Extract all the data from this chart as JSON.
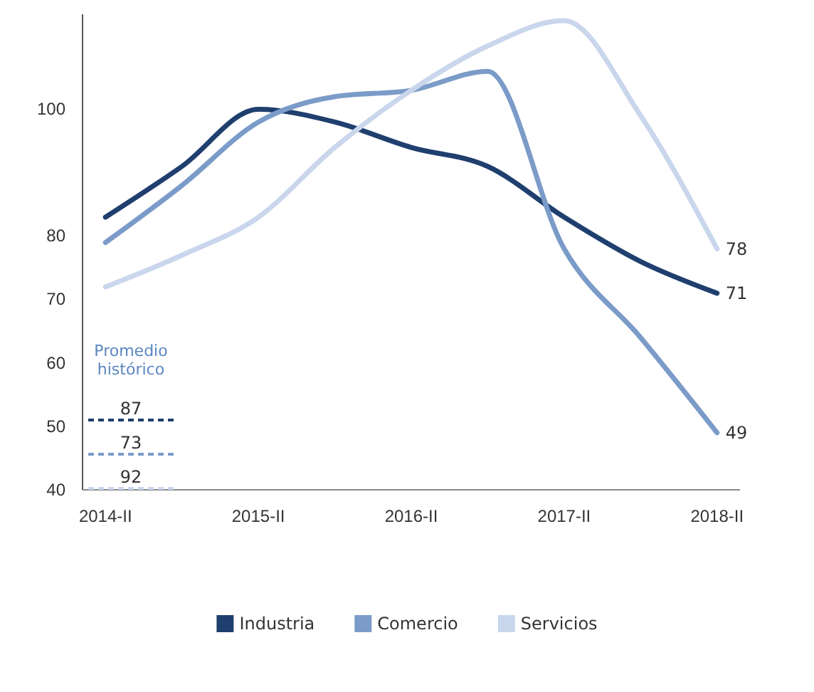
{
  "chart_data": {
    "type": "line",
    "categories": [
      "2014-II",
      null,
      "2015-II",
      null,
      "2016-II",
      null,
      "2017-II",
      null,
      "2018-II"
    ],
    "ylim": [
      40,
      115
    ],
    "yticks": [
      40,
      50,
      60,
      70,
      80,
      100
    ],
    "series": [
      {
        "name": "Industria",
        "color": "#1f3f6e",
        "values": [
          83,
          91,
          100,
          98,
          94,
          91,
          83,
          76,
          71
        ],
        "value_labels": [
          null,
          null,
          null,
          null,
          null,
          null,
          null,
          null,
          "71"
        ]
      },
      {
        "name": "Comercio",
        "color": "#7b9bc8",
        "values": [
          79,
          88,
          98,
          102,
          103,
          106,
          78,
          64,
          49
        ],
        "value_labels": [
          null,
          null,
          null,
          null,
          null,
          null,
          null,
          null,
          "49"
        ]
      },
      {
        "name": "Servicios",
        "color": "#c9d6ec",
        "values": [
          72,
          77,
          83,
          94,
          103,
          110,
          114,
          99,
          78
        ],
        "value_labels": [
          null,
          null,
          null,
          null,
          null,
          null,
          null,
          null,
          "78"
        ]
      }
    ],
    "annotations": [
      "Promedio histórico",
      "87",
      "73",
      "92"
    ],
    "legend": "bottom",
    "marker": "none",
    "line_style": "solid"
  }
}
